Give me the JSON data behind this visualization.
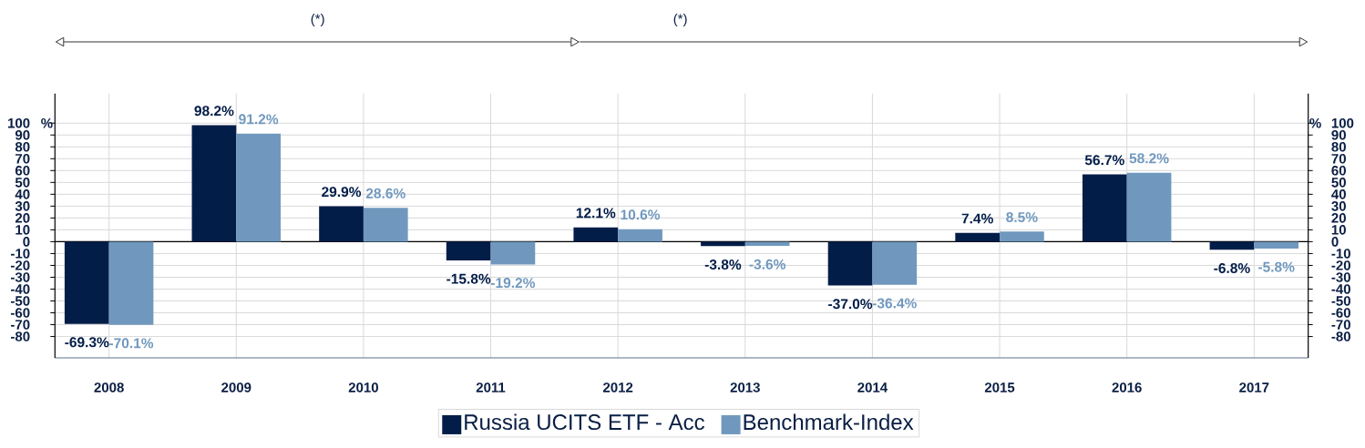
{
  "chart_data": {
    "type": "bar",
    "categories": [
      "2008",
      "2009",
      "2010",
      "2011",
      "2012",
      "2013",
      "2014",
      "2015",
      "2016",
      "2017"
    ],
    "series": [
      {
        "name": "Russia UCITS ETF - Acc",
        "color": "#031d49",
        "values": [
          -69.3,
          98.2,
          29.9,
          -15.8,
          12.1,
          -3.8,
          -37.0,
          7.4,
          56.7,
          -6.8
        ],
        "value_labels": [
          "-69.3%",
          "98.2%",
          "29.9%",
          "-15.8%",
          "12.1%",
          "-3.8%",
          "-37.0%",
          "7.4%",
          "56.7%",
          "-6.8%"
        ]
      },
      {
        "name": "Benchmark-Index",
        "color": "#7098be",
        "values": [
          -70.1,
          91.2,
          28.6,
          -19.2,
          10.6,
          -3.6,
          -36.4,
          8.5,
          58.2,
          -5.8
        ],
        "value_labels": [
          "-70.1%",
          "91.2%",
          "28.6%",
          "-19.2%",
          "10.6%",
          "-3.6%",
          "-36.4%",
          "8.5%",
          "58.2%",
          "-5.8%"
        ]
      }
    ],
    "ylabel": "%",
    "y2label": "%",
    "ylim": [
      -98,
      125
    ],
    "yticks": [
      -80,
      -70,
      -60,
      -50,
      -40,
      -30,
      -20,
      -10,
      0,
      10,
      20,
      30,
      40,
      50,
      60,
      70,
      80,
      90,
      100
    ],
    "y2lim": [
      -98,
      125
    ],
    "y2ticks": [
      -80,
      -70,
      -60,
      -50,
      -40,
      -30,
      -20,
      -10,
      0,
      10,
      20,
      30,
      40,
      50,
      60,
      70,
      80,
      90,
      100
    ],
    "grid": true,
    "legend": "bottom",
    "annotations": [
      "(*)",
      "(*)"
    ]
  }
}
